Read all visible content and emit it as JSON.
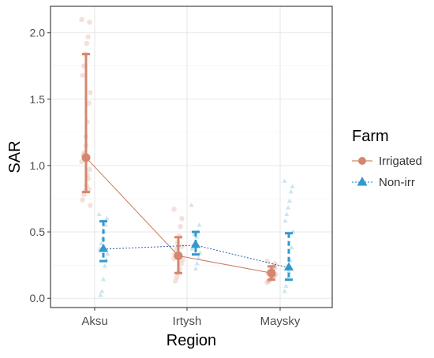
{
  "chart_data": {
    "type": "scatter",
    "xlabel": "Region",
    "ylabel": "SAR",
    "categories": [
      "Aksu",
      "Irtysh",
      "Maysky"
    ],
    "ylim": [
      -0.07,
      2.2
    ],
    "yticks": [
      "0.0",
      "0.5",
      "1.0",
      "1.5",
      "2.0"
    ],
    "grid": true,
    "legend": {
      "title": "Farm",
      "placement": "right"
    },
    "series": [
      {
        "name": "Irrigated",
        "color": "#d4876e",
        "marker": "circle",
        "line_style": "solid",
        "means": [
          1.06,
          0.32,
          0.19
        ],
        "lower": [
          0.8,
          0.19,
          0.14
        ],
        "upper": [
          1.84,
          0.46,
          0.24
        ],
        "points": [
          [
            2.1,
            2.08,
            1.97,
            1.92,
            1.84,
            1.75,
            1.68,
            1.55,
            1.47,
            1.33,
            1.22,
            1.1,
            1.08,
            1.03,
            0.97,
            0.9,
            0.85,
            0.81,
            0.78,
            0.74,
            0.7,
            0.82,
            0.93,
            1.15
          ],
          [
            0.67,
            0.6,
            0.54,
            0.47,
            0.42,
            0.37,
            0.33,
            0.29,
            0.26,
            0.22,
            0.19,
            0.16,
            0.13,
            0.3,
            0.39
          ],
          [
            0.28,
            0.26,
            0.24,
            0.22,
            0.21,
            0.2,
            0.19,
            0.18,
            0.17,
            0.16,
            0.15,
            0.14,
            0.13,
            0.12,
            0.23
          ]
        ]
      },
      {
        "name": "Non-irr",
        "color": "#3399cc",
        "marker": "triangle",
        "line_style": "dotted",
        "means": [
          0.37,
          0.4,
          0.23
        ],
        "lower": [
          0.28,
          0.33,
          0.14
        ],
        "upper": [
          0.58,
          0.5,
          0.49
        ],
        "points": [
          [
            0.63,
            0.6,
            0.55,
            0.5,
            0.45,
            0.41,
            0.37,
            0.33,
            0.29,
            0.24,
            0.14,
            0.05,
            0.02
          ],
          [
            0.7,
            0.55,
            0.5,
            0.46,
            0.42,
            0.4,
            0.37,
            0.34,
            0.3,
            0.26,
            0.22,
            0.48
          ],
          [
            0.88,
            0.84,
            0.8,
            0.73,
            0.68,
            0.63,
            0.58,
            0.5,
            0.38,
            0.28,
            0.2,
            0.14,
            0.09,
            0.05
          ]
        ]
      }
    ]
  }
}
